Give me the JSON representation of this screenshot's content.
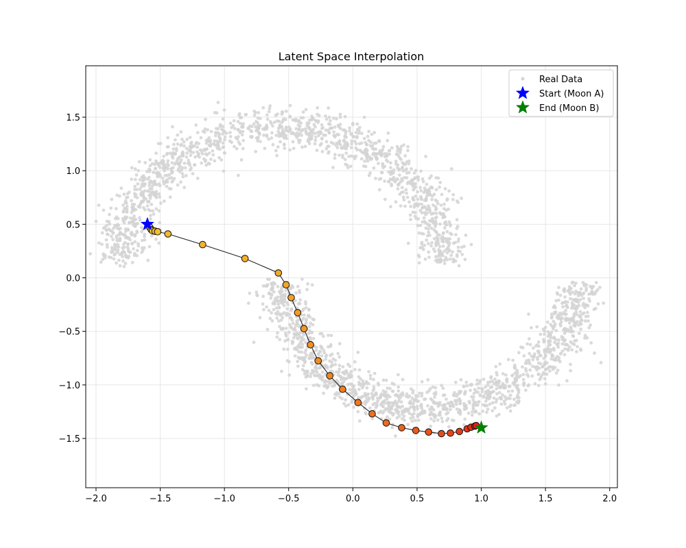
{
  "chart_data": {
    "type": "scatter",
    "title": "Latent Space Interpolation",
    "xlabel": "",
    "ylabel": "",
    "xlim": [
      -2.08,
      2.06
    ],
    "ylim": [
      -1.96,
      1.98
    ],
    "xticks": [
      -2.0,
      -1.5,
      -1.0,
      -0.5,
      0.0,
      0.5,
      1.0,
      1.5,
      2.0
    ],
    "yticks": [
      -1.5,
      -1.0,
      -0.5,
      0.0,
      0.5,
      1.0,
      1.5
    ],
    "xtick_labels": [
      "−2.0",
      "−1.5",
      "−1.0",
      "−0.5",
      "0.0",
      "0.5",
      "1.0",
      "1.5",
      "2.0"
    ],
    "ytick_labels": [
      "−1.5",
      "−1.0",
      "−0.5",
      "0.0",
      "0.5",
      "1.0",
      "1.5"
    ],
    "grid": true,
    "legend_position": "top-right",
    "legend": [
      {
        "label": "Real Data",
        "marker": "dot",
        "color": "#d3d3d3"
      },
      {
        "label": "Start (Moon A)",
        "marker": "star",
        "color": "#0000ff"
      },
      {
        "label": "End (Moon B)",
        "marker": "star",
        "color": "#008000"
      }
    ],
    "real_data": {
      "name": "Real Data",
      "color": "#d3d3d3",
      "description": "two interleaving moons",
      "moon_a": {
        "center": [
          -0.55,
          0.15
        ],
        "radius": 1.25,
        "angle_range_deg": [
          0,
          180
        ]
      },
      "moon_b": {
        "center": [
          0.6,
          -0.05
        ],
        "radius": 1.15,
        "angle_range_deg": [
          180,
          360
        ]
      }
    },
    "start": {
      "name": "Start (Moon A)",
      "x": -1.6,
      "y": 0.5,
      "color": "#0000ff"
    },
    "end": {
      "name": "End (Moon B)",
      "x": 1.0,
      "y": -1.4,
      "color": "#008000"
    },
    "interpolation": {
      "name": "Interpolation path",
      "line_color": "#222222",
      "colormap": "yellow-orange-red",
      "points": [
        {
          "x": -1.58,
          "y": 0.47
        },
        {
          "x": -1.57,
          "y": 0.45
        },
        {
          "x": -1.56,
          "y": 0.44
        },
        {
          "x": -1.54,
          "y": 0.435
        },
        {
          "x": -1.52,
          "y": 0.43
        },
        {
          "x": -1.44,
          "y": 0.41
        },
        {
          "x": -1.17,
          "y": 0.31
        },
        {
          "x": -0.84,
          "y": 0.18
        },
        {
          "x": -0.58,
          "y": 0.045
        },
        {
          "x": -0.52,
          "y": -0.065
        },
        {
          "x": -0.48,
          "y": -0.185
        },
        {
          "x": -0.43,
          "y": -0.325
        },
        {
          "x": -0.38,
          "y": -0.475
        },
        {
          "x": -0.33,
          "y": -0.625
        },
        {
          "x": -0.27,
          "y": -0.775
        },
        {
          "x": -0.18,
          "y": -0.915
        },
        {
          "x": -0.08,
          "y": -1.04
        },
        {
          "x": 0.04,
          "y": -1.165
        },
        {
          "x": 0.15,
          "y": -1.27
        },
        {
          "x": 0.26,
          "y": -1.355
        },
        {
          "x": 0.38,
          "y": -1.4
        },
        {
          "x": 0.49,
          "y": -1.425
        },
        {
          "x": 0.59,
          "y": -1.44
        },
        {
          "x": 0.69,
          "y": -1.455
        },
        {
          "x": 0.76,
          "y": -1.45
        },
        {
          "x": 0.83,
          "y": -1.435
        },
        {
          "x": 0.89,
          "y": -1.41
        },
        {
          "x": 0.92,
          "y": -1.395
        },
        {
          "x": 0.95,
          "y": -1.385
        },
        {
          "x": 0.96,
          "y": -1.38
        }
      ]
    }
  }
}
